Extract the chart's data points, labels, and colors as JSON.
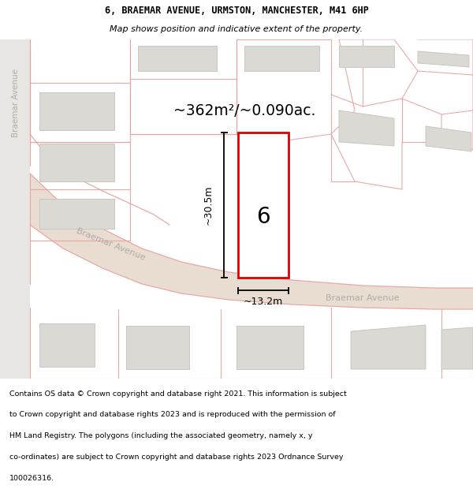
{
  "title_line1": "6, BRAEMAR AVENUE, URMSTON, MANCHESTER, M41 6HP",
  "title_line2": "Map shows position and indicative extent of the property.",
  "area_text": "~362m²/~0.090ac.",
  "dim_height": "~30.5m",
  "dim_width": "~13.2m",
  "house_number": "6",
  "street_label_left": "Braemar Avenue",
  "street_label_bottom_left": "Braemar Avenue",
  "street_label_bottom_right": "Braemar Avenue",
  "footer_lines": [
    "Contains OS data © Crown copyright and database right 2021. This information is subject",
    "to Crown copyright and database rights 2023 and is reproduced with the permission of",
    "HM Land Registry. The polygons (including the associated geometry, namely x, y",
    "co-ordinates) are subject to Crown copyright and database rights 2023 Ordnance Survey",
    "100026316."
  ],
  "map_bg": "#f2f0ed",
  "road_color": "#e8ddd0",
  "road_edge_color": "#e0c8b8",
  "plot_outline_color": "#dd0000",
  "plot_fill_color": "#ffffff",
  "building_fill": "#dbd9d4",
  "building_outline": "#c5c2bc",
  "dim_line_color": "#111111",
  "pink_line_color": "#e8a0a0",
  "street_text_color": "#b0aca8",
  "title_bg": "#ffffff",
  "footer_bg": "#ffffff",
  "left_road_bg": "#e8e4e0"
}
